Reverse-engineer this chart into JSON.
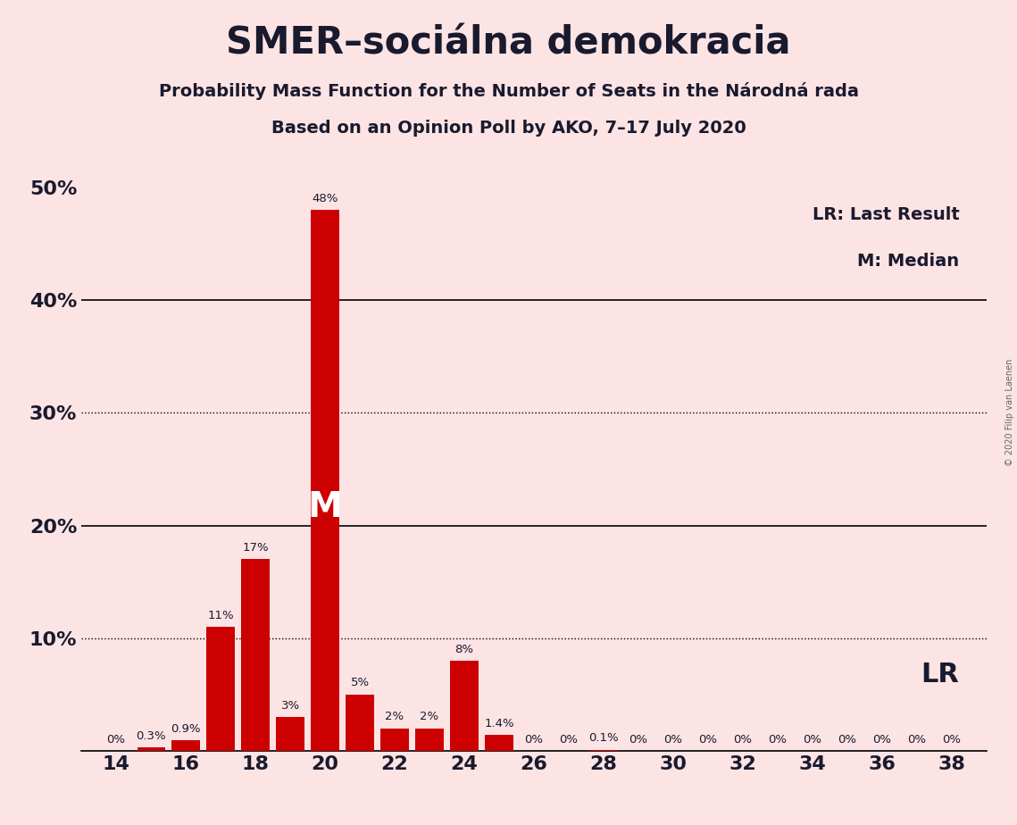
{
  "title": "SMER–sociálna demokracia",
  "subtitle1": "Probability Mass Function for the Number of Seats in the Národná rada",
  "subtitle2": "Based on an Opinion Poll by AKO, 7–17 July 2020",
  "copyright": "© 2020 Filip van Laenen",
  "background_color": "#fce4e4",
  "bar_color": "#cc0000",
  "seats": [
    14,
    15,
    16,
    17,
    18,
    19,
    20,
    21,
    22,
    23,
    24,
    25,
    26,
    27,
    28,
    29,
    30,
    31,
    32,
    33,
    34,
    35,
    36,
    37,
    38
  ],
  "probabilities": [
    0.0,
    0.003,
    0.009,
    0.11,
    0.17,
    0.03,
    0.48,
    0.05,
    0.02,
    0.02,
    0.08,
    0.014,
    0.0,
    0.0,
    0.001,
    0.0,
    0.0,
    0.0,
    0.0,
    0.0,
    0.0,
    0.0,
    0.0,
    0.0,
    0.0
  ],
  "prob_labels": [
    "0%",
    "0.3%",
    "0.9%",
    "11%",
    "17%",
    "3%",
    "48%",
    "5%",
    "2%",
    "2%",
    "8%",
    "1.4%",
    "0%",
    "0%",
    "0.1%",
    "0%",
    "0%",
    "0%",
    "0%",
    "0%",
    "0%",
    "0%",
    "0%",
    "0%",
    "0%"
  ],
  "xtick_positions": [
    14,
    16,
    18,
    20,
    22,
    24,
    26,
    28,
    30,
    32,
    34,
    36,
    38
  ],
  "yticks": [
    0.0,
    0.1,
    0.2,
    0.3,
    0.4,
    0.5
  ],
  "ytick_labels": [
    "",
    "10%",
    "20%",
    "30%",
    "40%",
    "50%"
  ],
  "solid_hlines": [
    0.2,
    0.4
  ],
  "dotted_hlines": [
    0.1,
    0.3
  ],
  "median_seat": 20,
  "lr_seat": 25,
  "legend_lr": "LR: Last Result",
  "legend_m": "M: Median",
  "lr_label": "LR",
  "ylim": [
    0,
    0.52
  ],
  "xlim": [
    13,
    39
  ]
}
